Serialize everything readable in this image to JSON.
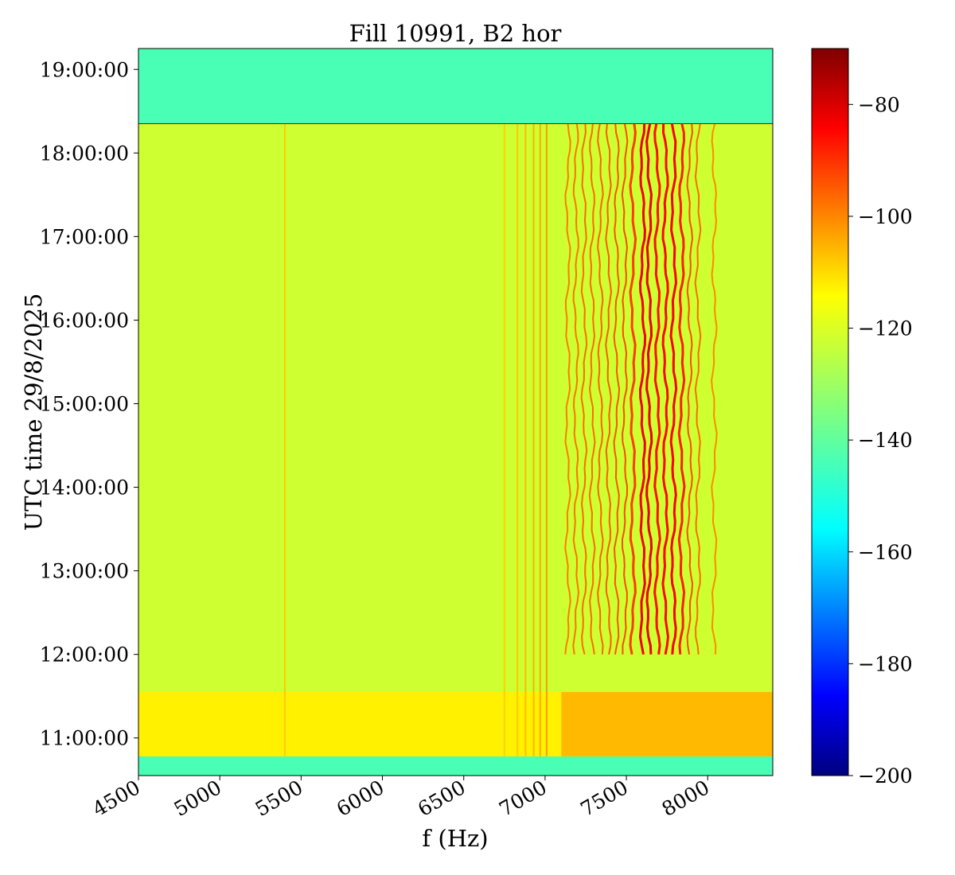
{
  "chart_data": {
    "type": "heatmap",
    "title": "Fill 10991, B2 hor",
    "xlabel": "f (Hz)",
    "ylabel": "UTC time 29/8/2025",
    "xlim": [
      4500,
      8400
    ],
    "ylim_hours": [
      10.55,
      19.25
    ],
    "x_ticks": [
      4500,
      5000,
      5500,
      6000,
      6500,
      7000,
      7500,
      8000
    ],
    "x_tick_labels": [
      "4500",
      "5000",
      "5500",
      "6000",
      "6500",
      "7000",
      "7500",
      "8000"
    ],
    "y_ticks_hours": [
      11,
      12,
      13,
      14,
      15,
      16,
      17,
      18,
      19
    ],
    "y_tick_labels": [
      "11:00:00",
      "12:00:00",
      "13:00:00",
      "14:00:00",
      "15:00:00",
      "16:00:00",
      "17:00:00",
      "18:00:00",
      "19:00:00"
    ],
    "colormap": "jet",
    "clim": [
      -200,
      -70
    ],
    "colorbar_ticks": [
      -80,
      -100,
      -120,
      -140,
      -160,
      -180,
      -200
    ],
    "colorbar_tick_labels": [
      "−80",
      "−100",
      "−120",
      "−140",
      "−160",
      "−180",
      "−200"
    ],
    "background_level": -125,
    "quiet_level": -142,
    "quiet_bands_hours": [
      [
        10.55,
        10.78
      ],
      [
        18.35,
        19.25
      ]
    ],
    "beam_period_hours": [
      10.78,
      18.35
    ],
    "broadband_noise_period_hours": [
      10.78,
      11.55
    ],
    "lines": [
      {
        "f": 5400,
        "t_start": 10.78,
        "t_end": 18.35,
        "level": -112
      },
      {
        "f": 6750,
        "t_start": 10.78,
        "t_end": 18.35,
        "level": -113
      },
      {
        "f": 6830,
        "t_start": 10.78,
        "t_end": 18.35,
        "level": -112
      },
      {
        "f": 6880,
        "t_start": 10.78,
        "t_end": 18.35,
        "level": -110
      },
      {
        "f": 6930,
        "t_start": 10.78,
        "t_end": 18.35,
        "level": -109
      },
      {
        "f": 6970,
        "t_start": 10.78,
        "t_end": 18.35,
        "level": -108
      },
      {
        "f": 7010,
        "t_start": 10.78,
        "t_end": 18.35,
        "level": -106
      },
      {
        "f": 7140,
        "t_start": 12.0,
        "t_end": 18.35,
        "level": -102
      },
      {
        "f": 7190,
        "t_start": 12.0,
        "t_end": 18.35,
        "level": -101
      },
      {
        "f": 7240,
        "t_start": 12.0,
        "t_end": 18.35,
        "level": -100
      },
      {
        "f": 7290,
        "t_start": 12.0,
        "t_end": 18.35,
        "level": -100
      },
      {
        "f": 7340,
        "t_start": 12.0,
        "t_end": 18.35,
        "level": -99
      },
      {
        "f": 7390,
        "t_start": 12.0,
        "t_end": 18.35,
        "level": -98
      },
      {
        "f": 7440,
        "t_start": 12.0,
        "t_end": 18.35,
        "level": -97
      },
      {
        "f": 7490,
        "t_start": 12.0,
        "t_end": 18.35,
        "level": -96
      },
      {
        "f": 7540,
        "t_start": 12.0,
        "t_end": 18.35,
        "level": -94
      },
      {
        "f": 7600,
        "t_start": 12.0,
        "t_end": 18.35,
        "level": -85
      },
      {
        "f": 7640,
        "t_start": 12.0,
        "t_end": 18.35,
        "level": -84
      },
      {
        "f": 7690,
        "t_start": 12.0,
        "t_end": 18.35,
        "level": -88
      },
      {
        "f": 7740,
        "t_start": 12.0,
        "t_end": 18.35,
        "level": -87
      },
      {
        "f": 7790,
        "t_start": 12.0,
        "t_end": 18.35,
        "level": -86
      },
      {
        "f": 7840,
        "t_start": 12.0,
        "t_end": 18.35,
        "level": -90
      },
      {
        "f": 7890,
        "t_start": 12.0,
        "t_end": 18.35,
        "level": -96
      },
      {
        "f": 7940,
        "t_start": 12.0,
        "t_end": 18.35,
        "level": -100
      },
      {
        "f": 8040,
        "t_start": 12.0,
        "t_end": 18.35,
        "level": -104
      }
    ]
  }
}
